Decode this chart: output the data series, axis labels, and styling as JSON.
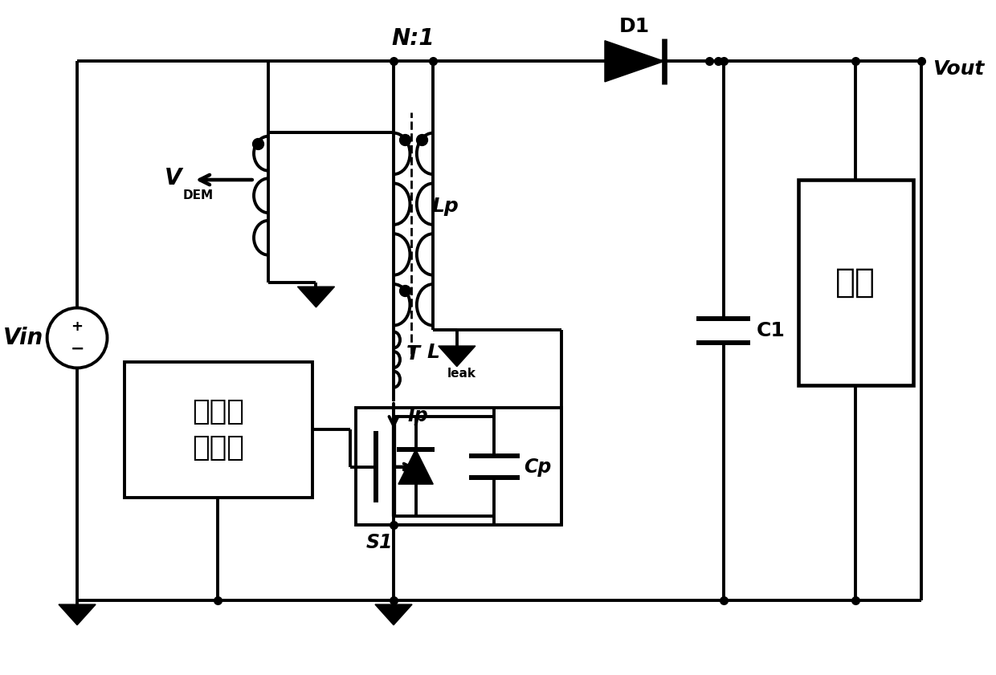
{
  "bg_color": "#ffffff",
  "lc": "#000000",
  "lw": 2.8,
  "fig_w": 12.4,
  "fig_h": 8.41,
  "labels": {
    "Vin": "Vin",
    "VDEM_V": "V",
    "VDEM_sub": "DEM",
    "N1": "N:1",
    "D1": "D1",
    "C1": "C1",
    "Lp": "Lp",
    "T": "T",
    "Lleak": "L",
    "Lleak_sub": "leak",
    "Ip": "Ip",
    "S1": "S1",
    "Cp": "Cp",
    "Vout": "Vout",
    "controller": "准谐振\n控制器",
    "load": "负载"
  }
}
